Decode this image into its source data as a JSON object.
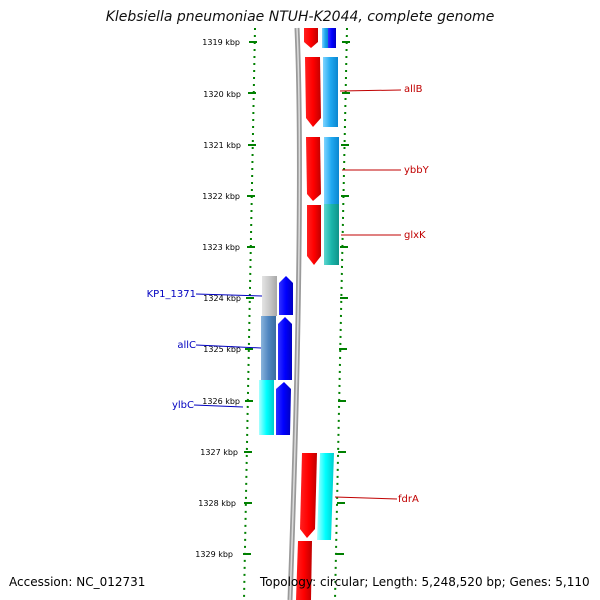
{
  "title": "Klebsiella pneumoniae NTUH-K2044, complete genome",
  "footer": {
    "accession": "Accession: NC_012731",
    "topology": "Topology: circular; Length: 5,248,520 bp; Genes: 5,110"
  },
  "ticks": [
    "1319 kbp",
    "1320 kbp",
    "1321 kbp",
    "1322 kbp",
    "1323 kbp",
    "1324 kbp",
    "1325 kbp",
    "1326 kbp",
    "1327 kbp",
    "1328 kbp",
    "1329 kbp"
  ],
  "genes_right": [
    "allB",
    "ybbY",
    "glxK",
    "fdrA"
  ],
  "genes_left": [
    "KP1_1371",
    "allC",
    "ylbC"
  ],
  "colors": {
    "forward_gene": "#ff0000",
    "reverse_gene": "#0000ff",
    "axis": "#888888",
    "dots": "#008000",
    "right_label": "#c00000",
    "left_label": "#0000c0"
  }
}
